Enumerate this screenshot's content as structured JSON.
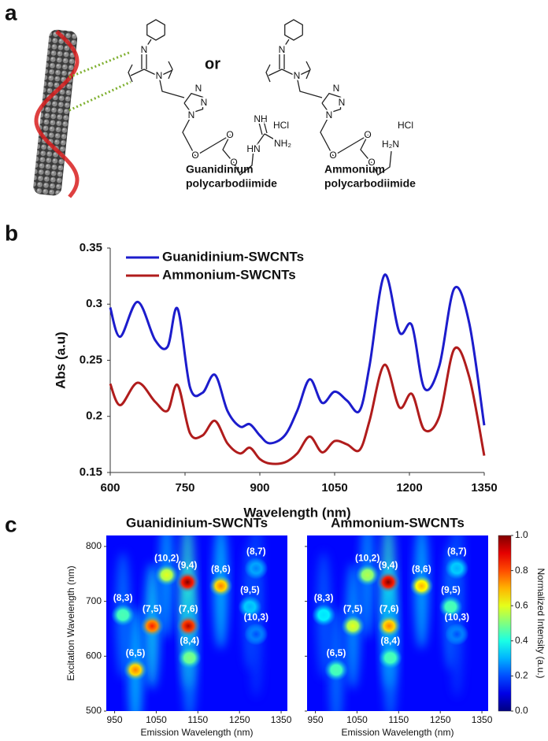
{
  "panel_labels": [
    "a",
    "b",
    "c"
  ],
  "scheme": {
    "connector": "or",
    "molecules": [
      {
        "name": [
          "Guanidinium",
          "polycarbodiimide"
        ],
        "atoms": [
          "N",
          "N",
          "N",
          "N",
          "N",
          "O",
          "O",
          "O",
          "HN",
          "NH",
          "NH₂",
          "HCl"
        ]
      },
      {
        "name": [
          "Ammonium",
          "polycarbodiimide"
        ],
        "atoms": [
          "N",
          "N",
          "N",
          "N",
          "N",
          "O",
          "O",
          "O",
          "HCl",
          "H₂N"
        ]
      }
    ]
  },
  "chart_data": [
    {
      "type": "line",
      "xlabel": "Wavelength (nm)",
      "ylabel": "Abs (a.u)",
      "legend": "upper left",
      "x": [
        600,
        620,
        655,
        690,
        715,
        735,
        760,
        785,
        810,
        835,
        860,
        880,
        900,
        920,
        950,
        975,
        1000,
        1025,
        1050,
        1075,
        1100,
        1120,
        1150,
        1180,
        1205,
        1230,
        1260,
        1290,
        1320,
        1350
      ],
      "series": [
        {
          "name": "Guanidinium-SWCNTs",
          "color": "#1c1ccc",
          "values": [
            0.297,
            0.271,
            0.302,
            0.268,
            0.262,
            0.296,
            0.226,
            0.221,
            0.237,
            0.205,
            0.191,
            0.193,
            0.183,
            0.176,
            0.183,
            0.205,
            0.233,
            0.212,
            0.222,
            0.214,
            0.205,
            0.245,
            0.326,
            0.275,
            0.281,
            0.225,
            0.245,
            0.314,
            0.283,
            0.192
          ]
        },
        {
          "name": "Ammonium-SWCNTs",
          "color": "#b01c1c",
          "values": [
            0.229,
            0.21,
            0.23,
            0.213,
            0.205,
            0.228,
            0.185,
            0.183,
            0.196,
            0.176,
            0.167,
            0.172,
            0.162,
            0.158,
            0.159,
            0.167,
            0.182,
            0.168,
            0.178,
            0.175,
            0.17,
            0.196,
            0.246,
            0.208,
            0.22,
            0.188,
            0.2,
            0.26,
            0.235,
            0.165
          ]
        }
      ],
      "xlim": [
        600,
        1350
      ],
      "xticks": [
        600,
        750,
        900,
        1050,
        1200,
        1350
      ],
      "ylim": [
        0.15,
        0.35
      ],
      "yticks": [
        0.15,
        0.2,
        0.25,
        0.3,
        0.35
      ]
    },
    {
      "type": "heatmap",
      "title": "Guanidinium-SWCNTs",
      "xlabel": "Emission Wavelength (nm)",
      "ylabel": "Excitation Wavelength (nm)",
      "xlim": [
        930,
        1365
      ],
      "xticks": [
        950,
        1050,
        1150,
        1250,
        1350
      ],
      "ylim": [
        500,
        820
      ],
      "yticks": [
        500,
        600,
        700,
        800
      ],
      "spots": [
        {
          "label": "(6,5)",
          "x": 1000,
          "y": 575,
          "value": 0.75
        },
        {
          "label": "(8,3)",
          "x": 970,
          "y": 675,
          "value": 0.45
        },
        {
          "label": "(7,5)",
          "x": 1040,
          "y": 655,
          "value": 0.85
        },
        {
          "label": "(10,2)",
          "x": 1075,
          "y": 748,
          "value": 0.6
        },
        {
          "label": "(9,4)",
          "x": 1125,
          "y": 735,
          "value": 1.0
        },
        {
          "label": "(7,6)",
          "x": 1127,
          "y": 655,
          "value": 0.95
        },
        {
          "label": "(8,4)",
          "x": 1130,
          "y": 597,
          "value": 0.5
        },
        {
          "label": "(8,6)",
          "x": 1205,
          "y": 728,
          "value": 0.75
        },
        {
          "label": "(9,5)",
          "x": 1275,
          "y": 690,
          "value": 0.3
        },
        {
          "label": "(8,7)",
          "x": 1290,
          "y": 760,
          "value": 0.25
        },
        {
          "label": "(10,3)",
          "x": 1290,
          "y": 640,
          "value": 0.2
        }
      ]
    },
    {
      "type": "heatmap",
      "title": "Ammonium-SWCNTs",
      "xlabel": "Emission Wavelength (nm)",
      "xlim": [
        930,
        1365
      ],
      "xticks": [
        950,
        1050,
        1150,
        1250,
        1350
      ],
      "ylim": [
        500,
        820
      ],
      "yticks": [
        500,
        600,
        700,
        800
      ],
      "spots": [
        {
          "label": "(6,5)",
          "x": 1000,
          "y": 575,
          "value": 0.45
        },
        {
          "label": "(8,3)",
          "x": 970,
          "y": 675,
          "value": 0.35
        },
        {
          "label": "(7,5)",
          "x": 1040,
          "y": 655,
          "value": 0.6
        },
        {
          "label": "(10,2)",
          "x": 1075,
          "y": 748,
          "value": 0.55
        },
        {
          "label": "(9,4)",
          "x": 1125,
          "y": 735,
          "value": 1.0
        },
        {
          "label": "(7,6)",
          "x": 1127,
          "y": 655,
          "value": 0.75
        },
        {
          "label": "(8,4)",
          "x": 1130,
          "y": 597,
          "value": 0.45
        },
        {
          "label": "(8,6)",
          "x": 1205,
          "y": 728,
          "value": 0.7
        },
        {
          "label": "(9,5)",
          "x": 1275,
          "y": 690,
          "value": 0.45
        },
        {
          "label": "(8,7)",
          "x": 1290,
          "y": 760,
          "value": 0.3
        },
        {
          "label": "(10,3)",
          "x": 1290,
          "y": 640,
          "value": 0.2
        }
      ],
      "colorbar": {
        "label": "Normalized Intensity (a.u.)",
        "lim": [
          0,
          1
        ],
        "ticks": [
          {
            "value": 0,
            "label": "0.0"
          },
          0.2,
          0.4,
          0.6,
          0.8,
          {
            "value": 1,
            "label": "1.0"
          }
        ]
      }
    }
  ]
}
